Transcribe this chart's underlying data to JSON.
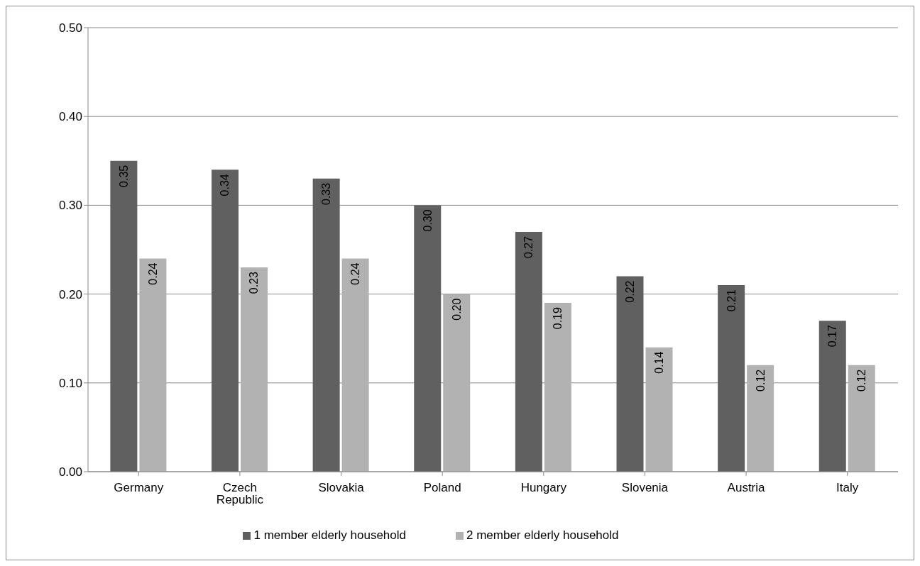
{
  "chart_data": {
    "type": "bar",
    "categories": [
      "Germany",
      "Czech Republic",
      "Slovakia",
      "Poland",
      "Hungary",
      "Slovenia",
      "Austria",
      "Italy"
    ],
    "series": [
      {
        "name": "1 member elderly household",
        "color": "#5f605f",
        "values": [
          0.35,
          0.34,
          0.33,
          0.3,
          0.27,
          0.22,
          0.21,
          0.17
        ],
        "value_labels": [
          "0.35",
          "0.34",
          "0.33",
          "0.30",
          "0.27",
          "0.22",
          "0.21",
          "0.17"
        ]
      },
      {
        "name": "2 member elderly household",
        "color": "#b2b2b2",
        "values": [
          0.24,
          0.23,
          0.24,
          0.2,
          0.19,
          0.14,
          0.12,
          0.12
        ],
        "value_labels": [
          "0.24",
          "0.23",
          "0.24",
          "0.20",
          "0.19",
          "0.14",
          "0.12",
          "0.12"
        ]
      }
    ],
    "ylim": [
      0,
      0.5
    ],
    "yticks": [
      {
        "value": 0,
        "label": "0.00"
      },
      {
        "value": 0.1,
        "label": "0.10"
      },
      {
        "value": 0.2,
        "label": "0.20"
      },
      {
        "value": 0.3,
        "label": "0.30"
      },
      {
        "value": 0.4,
        "label": "0.40"
      },
      {
        "value": 0.5,
        "label": "0.50"
      }
    ],
    "grid": "y",
    "legend": "bottom"
  }
}
